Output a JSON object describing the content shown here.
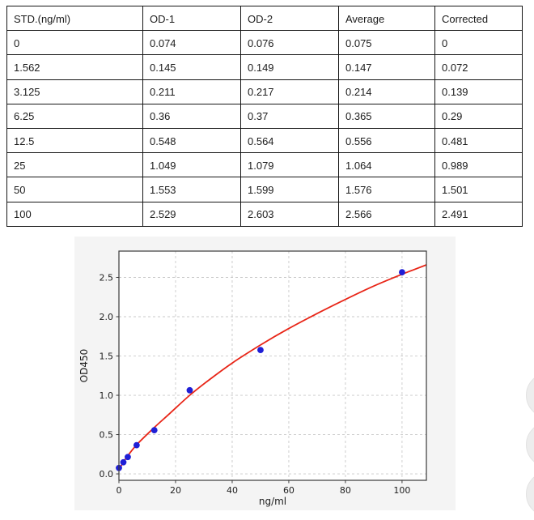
{
  "table": {
    "headers": [
      "STD.(ng/ml)",
      "OD-1",
      "OD-2",
      "Average",
      "Corrected"
    ],
    "rows": [
      [
        "0",
        "0.074",
        "0.076",
        "0.075",
        "0"
      ],
      [
        "1.562",
        "0.145",
        "0.149",
        "0.147",
        "0.072"
      ],
      [
        "3.125",
        "0.211",
        "0.217",
        "0.214",
        "0.139"
      ],
      [
        "6.25",
        "0.36",
        "0.37",
        "0.365",
        "0.29"
      ],
      [
        "12.5",
        "0.548",
        "0.564",
        "0.556",
        "0.481"
      ],
      [
        "25",
        "1.049",
        "1.079",
        "1.064",
        "0.989"
      ],
      [
        "50",
        "1.553",
        "1.599",
        "1.576",
        "1.501"
      ],
      [
        "100",
        "2.529",
        "2.603",
        "2.566",
        "2.491"
      ]
    ]
  },
  "chart_data": {
    "type": "scatter",
    "title": "",
    "xlabel": "ng/ml",
    "ylabel": "OD450",
    "xlim": [
      0,
      108.6
    ],
    "ylim": [
      -0.082,
      2.835
    ],
    "x_ticks": [
      0,
      20,
      40,
      60,
      80,
      100
    ],
    "x_tick_labels": [
      "0",
      "20",
      "40",
      "60",
      "80",
      "100"
    ],
    "y_ticks": [
      0,
      0.5,
      1.0,
      1.5,
      2.0,
      2.5
    ],
    "y_tick_labels": [
      "0.0",
      "0.5",
      "1.0",
      "1.5",
      "2.0",
      "2.5"
    ],
    "grid": true,
    "legend": "none",
    "series": [
      {
        "name": "standards-average-points",
        "type": "scatter",
        "x": [
          0,
          1.562,
          3.125,
          6.25,
          12.5,
          25,
          50,
          100
        ],
        "y": [
          0.075,
          0.147,
          0.214,
          0.365,
          0.556,
          1.064,
          1.576,
          2.566
        ]
      },
      {
        "name": "fitted-curve",
        "type": "line",
        "x": [
          0,
          1.562,
          3.125,
          6.25,
          12.5,
          18,
          25,
          32,
          40,
          50,
          60,
          70,
          80,
          90,
          100,
          108.6
        ],
        "y": [
          0.05,
          0.15,
          0.23,
          0.37,
          0.59,
          0.77,
          1.0,
          1.2,
          1.41,
          1.64,
          1.85,
          2.04,
          2.22,
          2.39,
          2.54,
          2.66
        ]
      }
    ],
    "colors": {
      "points": "#1f1fd6",
      "curve": "#e82517",
      "grid": "#c9c9c9",
      "spine": "#3a3a3a",
      "tick_text": "#1d1d1d",
      "figure_bg": "#f4f4f4",
      "plot_bg": "#ffffff"
    }
  },
  "decor": {
    "floating_circle_count": 3
  }
}
